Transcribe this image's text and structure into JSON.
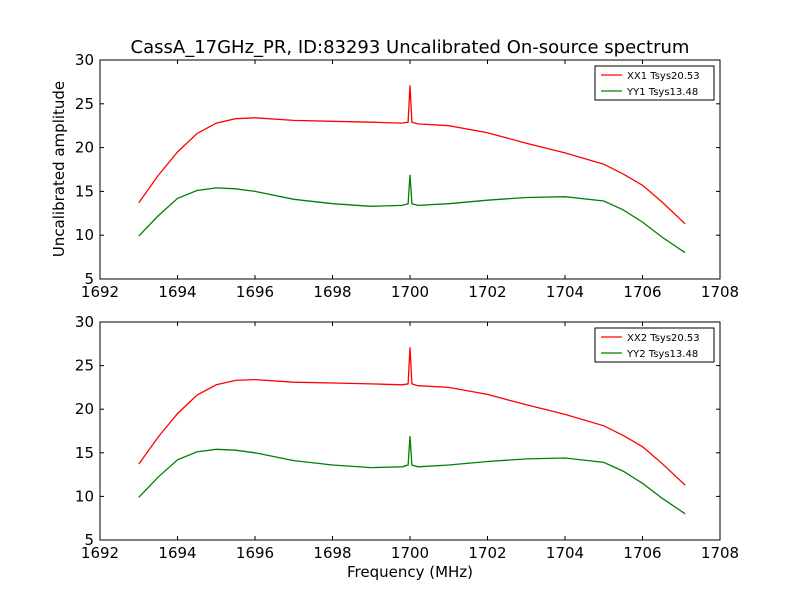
{
  "title": "CassA_17GHz_PR, ID:83293 Uncalibrated On-source spectrum",
  "colors": {
    "xx": "#ff0000",
    "yy": "#008000",
    "axes": "#000000",
    "background": "#ffffff"
  },
  "chart_data": [
    {
      "type": "line",
      "xlabel": "",
      "ylabel": "Uncalibrated amplitude",
      "xlim": [
        1692,
        1708
      ],
      "ylim": [
        5,
        30
      ],
      "xticks": [
        "1692",
        "1694",
        "1696",
        "1698",
        "1700",
        "1702",
        "1704",
        "1706",
        "1708"
      ],
      "yticks": [
        "5",
        "10",
        "15",
        "20",
        "25",
        "30"
      ],
      "grid": false,
      "legend_position": "top-right",
      "series": [
        {
          "name": "XX1 Tsys20.53",
          "color": "#ff0000",
          "x": [
            1693.0,
            1693.5,
            1694.0,
            1694.5,
            1695.0,
            1695.5,
            1696.0,
            1697.0,
            1698.0,
            1699.0,
            1699.8,
            1699.95,
            1700.0,
            1700.05,
            1700.2,
            1701.0,
            1702.0,
            1703.0,
            1704.0,
            1705.0,
            1705.5,
            1706.0,
            1706.5,
            1707.1
          ],
          "y": [
            13.7,
            16.8,
            19.5,
            21.6,
            22.8,
            23.3,
            23.4,
            23.1,
            23.0,
            22.9,
            22.8,
            22.9,
            27.1,
            22.9,
            22.7,
            22.5,
            21.7,
            20.5,
            19.4,
            18.1,
            17.0,
            15.7,
            13.8,
            11.3
          ]
        },
        {
          "name": "YY1 Tsys13.48",
          "color": "#008000",
          "x": [
            1693.0,
            1693.5,
            1694.0,
            1694.5,
            1695.0,
            1695.5,
            1696.0,
            1697.0,
            1698.0,
            1699.0,
            1699.8,
            1699.95,
            1700.0,
            1700.05,
            1700.2,
            1701.0,
            1702.0,
            1703.0,
            1704.0,
            1705.0,
            1705.5,
            1706.0,
            1706.5,
            1707.1
          ],
          "y": [
            9.9,
            12.2,
            14.2,
            15.1,
            15.4,
            15.3,
            15.0,
            14.1,
            13.6,
            13.3,
            13.4,
            13.6,
            16.9,
            13.6,
            13.4,
            13.6,
            14.0,
            14.3,
            14.4,
            13.9,
            12.9,
            11.5,
            9.8,
            8.0
          ]
        }
      ]
    },
    {
      "type": "line",
      "xlabel": "Frequency (MHz)",
      "ylabel": "",
      "xlim": [
        1692,
        1708
      ],
      "ylim": [
        5,
        30
      ],
      "xticks": [
        "1692",
        "1694",
        "1696",
        "1698",
        "1700",
        "1702",
        "1704",
        "1706",
        "1708"
      ],
      "yticks": [
        "5",
        "10",
        "15",
        "20",
        "25",
        "30"
      ],
      "grid": false,
      "legend_position": "top-right",
      "series": [
        {
          "name": "XX2 Tsys20.53",
          "color": "#ff0000",
          "x": [
            1693.0,
            1693.5,
            1694.0,
            1694.5,
            1695.0,
            1695.5,
            1696.0,
            1697.0,
            1698.0,
            1699.0,
            1699.8,
            1699.95,
            1700.0,
            1700.05,
            1700.2,
            1701.0,
            1702.0,
            1703.0,
            1704.0,
            1705.0,
            1705.5,
            1706.0,
            1706.5,
            1707.1
          ],
          "y": [
            13.7,
            16.8,
            19.5,
            21.6,
            22.8,
            23.3,
            23.4,
            23.1,
            23.0,
            22.9,
            22.8,
            22.9,
            27.1,
            22.9,
            22.7,
            22.5,
            21.7,
            20.5,
            19.4,
            18.1,
            17.0,
            15.7,
            13.8,
            11.3
          ]
        },
        {
          "name": "YY2 Tsys13.48",
          "color": "#008000",
          "x": [
            1693.0,
            1693.5,
            1694.0,
            1694.5,
            1695.0,
            1695.5,
            1696.0,
            1697.0,
            1698.0,
            1699.0,
            1699.8,
            1699.95,
            1700.0,
            1700.05,
            1700.2,
            1701.0,
            1702.0,
            1703.0,
            1704.0,
            1705.0,
            1705.5,
            1706.0,
            1706.5,
            1707.1
          ],
          "y": [
            9.9,
            12.2,
            14.2,
            15.1,
            15.4,
            15.3,
            15.0,
            14.1,
            13.6,
            13.3,
            13.4,
            13.6,
            16.9,
            13.6,
            13.4,
            13.6,
            14.0,
            14.3,
            14.4,
            13.9,
            12.9,
            11.5,
            9.8,
            8.0
          ]
        }
      ]
    }
  ]
}
